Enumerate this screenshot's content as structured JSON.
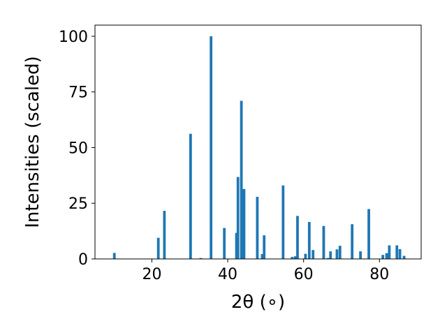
{
  "chart_data": {
    "type": "bar",
    "title": "",
    "xlabel": "2θ (∘)",
    "ylabel": "Intensities (scaled)",
    "xlim": [
      5,
      91
    ],
    "ylim": [
      0,
      105
    ],
    "x_ticks": [
      20,
      40,
      60,
      80
    ],
    "y_ticks": [
      0,
      25,
      50,
      75,
      100
    ],
    "bar_width": 0.7,
    "color": "#1f77b4",
    "grid": false,
    "legend": "none",
    "x": [
      10.1,
      21.7,
      23.3,
      30.2,
      32.9,
      35.6,
      39.1,
      42.3,
      42.7,
      43.6,
      44.3,
      47.8,
      49.1,
      49.6,
      54.6,
      57.0,
      57.8,
      58.4,
      60.5,
      61.5,
      62.5,
      65.3,
      66.4,
      67.1,
      68.8,
      69.6,
      72.8,
      75.0,
      77.2,
      80.9,
      81.9,
      82.6,
      84.6,
      85.4,
      86.5
    ],
    "values": [
      2.7,
      9.5,
      21.6,
      56.2,
      0.4,
      100.0,
      13.9,
      11.7,
      36.8,
      71.0,
      31.4,
      27.9,
      2.2,
      10.6,
      33.0,
      0.9,
      1.2,
      19.3,
      2.3,
      16.6,
      4.0,
      14.8,
      0.4,
      3.4,
      4.3,
      5.9,
      15.6,
      3.4,
      22.4,
      1.8,
      2.6,
      6.1,
      6.1,
      4.4,
      1.4
    ]
  }
}
